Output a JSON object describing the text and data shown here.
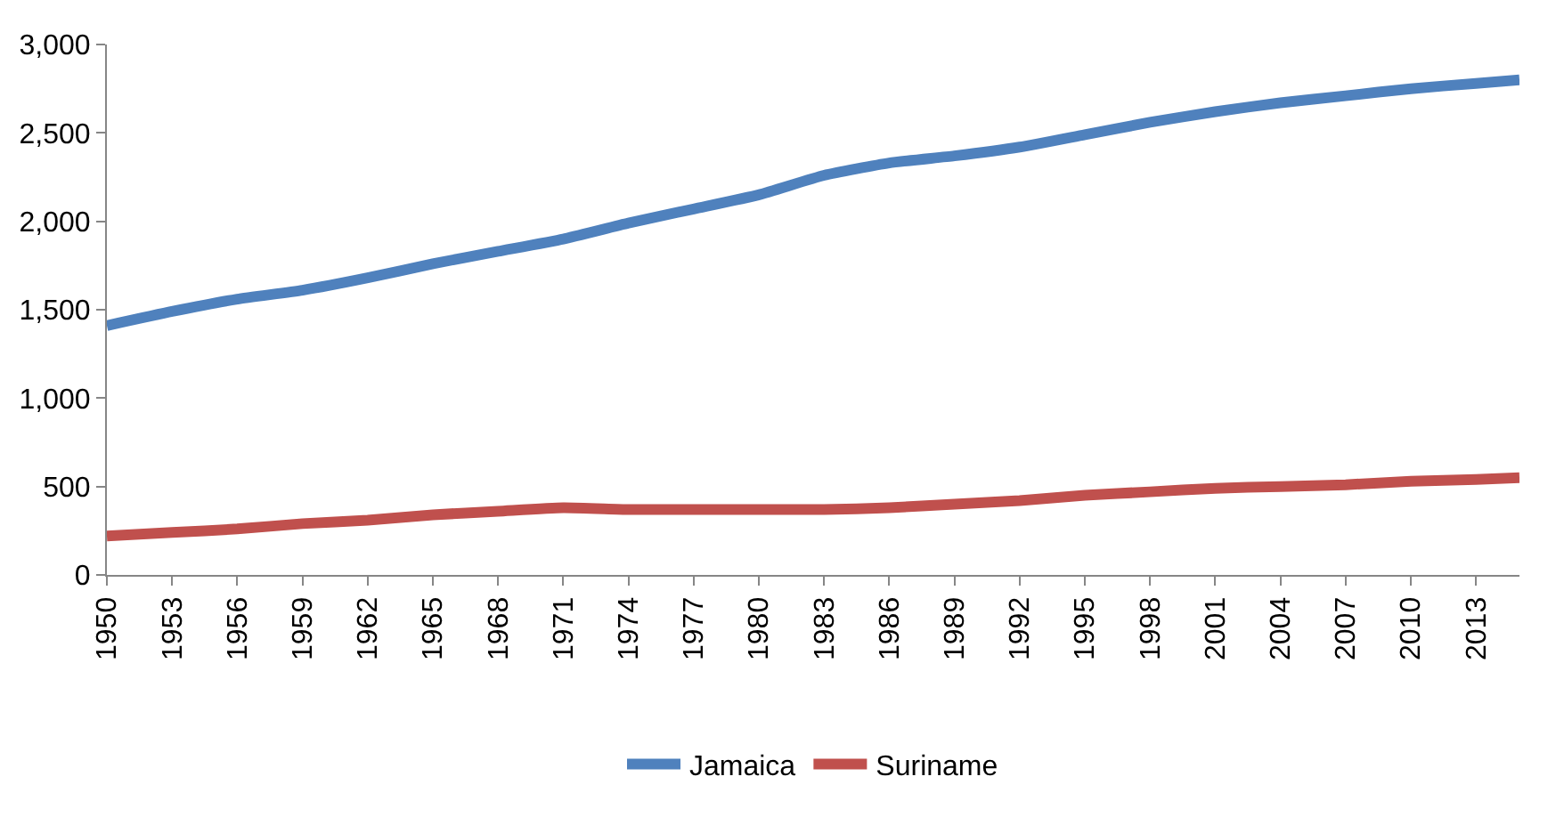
{
  "chart_data": {
    "type": "line",
    "x": [
      1950,
      1953,
      1956,
      1959,
      1962,
      1965,
      1968,
      1971,
      1974,
      1977,
      1980,
      1983,
      1986,
      1989,
      1992,
      1995,
      1998,
      2001,
      2004,
      2007,
      2010,
      2013,
      2015
    ],
    "series": [
      {
        "name": "Jamaica",
        "color": "#4f81bd",
        "values": [
          1410,
          1490,
          1560,
          1610,
          1680,
          1760,
          1830,
          1900,
          1990,
          2070,
          2150,
          2260,
          2330,
          2370,
          2420,
          2490,
          2560,
          2620,
          2670,
          2710,
          2750,
          2780,
          2800
        ]
      },
      {
        "name": "Suriname",
        "color": "#c0504d",
        "values": [
          220,
          240,
          260,
          290,
          310,
          340,
          360,
          380,
          370,
          370,
          370,
          370,
          380,
          400,
          420,
          450,
          470,
          490,
          500,
          510,
          530,
          540,
          550
        ]
      }
    ],
    "xlim": [
      1950,
      2015
    ],
    "xticks": [
      1950,
      1953,
      1956,
      1959,
      1962,
      1965,
      1968,
      1971,
      1974,
      1977,
      1980,
      1983,
      1986,
      1989,
      1992,
      1995,
      1998,
      2001,
      2004,
      2007,
      2010,
      2013
    ],
    "ylim": [
      0,
      3000
    ],
    "yticks": [
      {
        "value": 0,
        "label": "0"
      },
      {
        "value": 500,
        "label": "500"
      },
      {
        "value": 1000,
        "label": "1,000"
      },
      {
        "value": 1500,
        "label": "1,500"
      },
      {
        "value": 2000,
        "label": "2,000"
      },
      {
        "value": 2500,
        "label": "2,500"
      },
      {
        "value": 3000,
        "label": "3,000"
      }
    ],
    "legend": "bottom",
    "marker": "none",
    "line_style": "solid"
  }
}
